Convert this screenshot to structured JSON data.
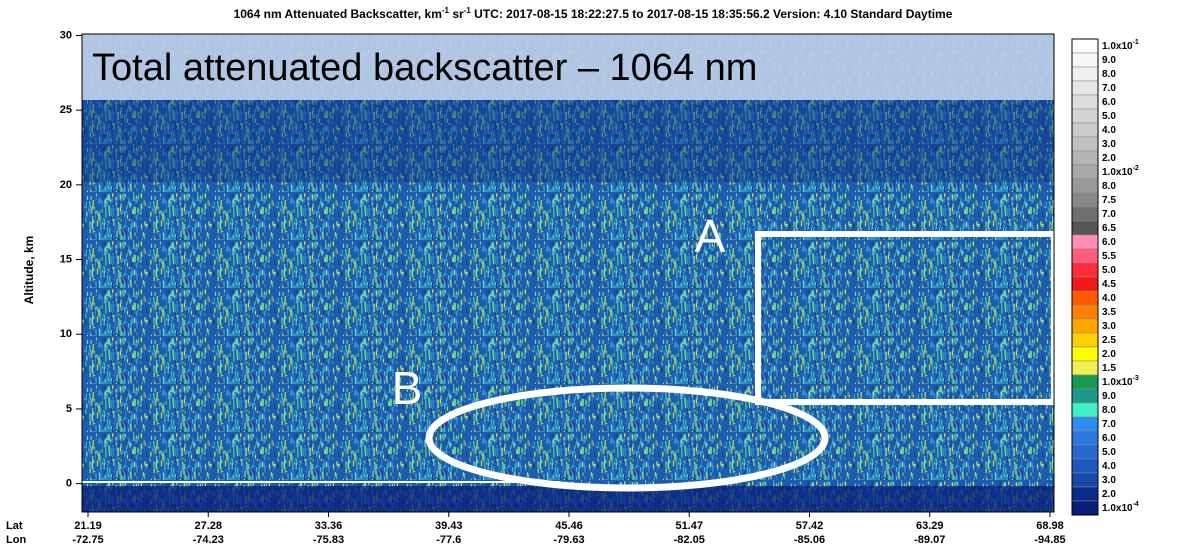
{
  "chart_data": {
    "type": "heatmap",
    "title": [
      "1064 nm Attenuated Backscatter, km",
      "-1",
      " sr",
      "-1",
      "    UTC:  2017-08-15 18:22:27.5  to  2017-08-15 18:35:56.2    Version: 4.10  Standard  Daytime"
    ],
    "y_label": "Altitude, km",
    "ylim": [
      -1.9,
      30.1
    ],
    "yticks": [
      0,
      5,
      10,
      15,
      20,
      25,
      30
    ],
    "x_rows": [
      {
        "name": "Lat",
        "ticks": [
          21.19,
          27.28,
          33.36,
          39.43,
          45.46,
          51.47,
          57.42,
          63.29,
          68.98
        ]
      },
      {
        "name": "Lon",
        "ticks": [
          -72.75,
          -74.23,
          -75.83,
          -77.6,
          -79.63,
          -82.05,
          -85.06,
          -89.07,
          -94.85
        ]
      }
    ],
    "annotations": {
      "banner": "Total attenuated backscatter – 1064 nm",
      "box": "A",
      "ellipse": "B"
    },
    "colorbar": [
      {
        "label": "1.0x10",
        "exp": "-1",
        "color": "#ffffff"
      },
      {
        "label": "9.0",
        "color": "#f7f7f7"
      },
      {
        "label": "8.0",
        "color": "#efefef"
      },
      {
        "label": "7.0",
        "color": "#e6e6e6"
      },
      {
        "label": "6.0",
        "color": "#dddddd"
      },
      {
        "label": "5.0",
        "color": "#d4d4d4"
      },
      {
        "label": "4.0",
        "color": "#cbcbcb"
      },
      {
        "label": "3.0",
        "color": "#c0c0c0"
      },
      {
        "label": "2.0",
        "color": "#b5b5b5"
      },
      {
        "label": "1.0x10",
        "exp": "-2",
        "color": "#a8a8a8"
      },
      {
        "label": "8.0",
        "color": "#999999"
      },
      {
        "label": "7.5",
        "color": "#888888"
      },
      {
        "label": "7.0",
        "color": "#707070"
      },
      {
        "label": "6.5",
        "color": "#555555"
      },
      {
        "label": "6.0",
        "color": "#ff8fb0"
      },
      {
        "label": "5.5",
        "color": "#ff5c7c"
      },
      {
        "label": "5.0",
        "color": "#ff2a3a"
      },
      {
        "label": "4.5",
        "color": "#f01818"
      },
      {
        "label": "4.0",
        "color": "#ff5a00"
      },
      {
        "label": "3.5",
        "color": "#ff8000"
      },
      {
        "label": "3.0",
        "color": "#ffa500"
      },
      {
        "label": "2.5",
        "color": "#ffd000"
      },
      {
        "label": "2.0",
        "color": "#ffff00"
      },
      {
        "label": "1.5",
        "color": "#f0f050"
      },
      {
        "label": "1.0x10",
        "exp": "-3",
        "color": "#1a9a50"
      },
      {
        "label": "9.0",
        "color": "#1a9a8a"
      },
      {
        "label": "8.0",
        "color": "#40f0c0"
      },
      {
        "label": "7.0",
        "color": "#2f8cf0"
      },
      {
        "label": "6.0",
        "color": "#2a78e0"
      },
      {
        "label": "5.0",
        "color": "#2468d0"
      },
      {
        "label": "4.0",
        "color": "#1c58c0"
      },
      {
        "label": "3.0",
        "color": "#1848a8"
      },
      {
        "label": "2.0",
        "color": "#0c2a8a"
      },
      {
        "label": "1.0x10",
        "exp": "-4",
        "color": "#0a1e78"
      }
    ]
  }
}
